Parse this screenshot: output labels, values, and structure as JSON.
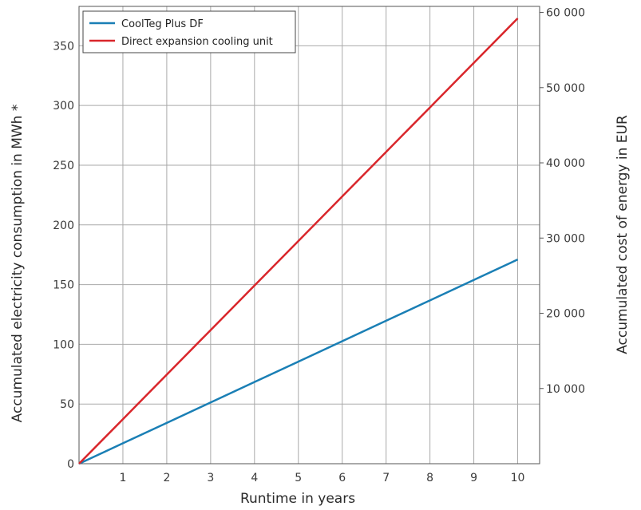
{
  "chart_data": {
    "type": "line",
    "x": [
      0,
      1,
      2,
      3,
      4,
      5,
      6,
      7,
      8,
      9,
      10
    ],
    "x_ticks": [
      "1",
      "2",
      "3",
      "4",
      "5",
      "6",
      "7",
      "8",
      "9",
      "10"
    ],
    "xlim": [
      0,
      10.5
    ],
    "xlabel": "Runtime in years",
    "ylabel": "Accumulated electricity consumption in MWh *",
    "ylim": [
      0,
      383
    ],
    "y_ticks": [
      "0",
      "50",
      "100",
      "150",
      "200",
      "250",
      "300",
      "350"
    ],
    "y2label": "Accumulated cost of energy in EUR",
    "y2lim": [
      0,
      60800
    ],
    "y2_ticks": [
      "10 000",
      "20 000",
      "30 000",
      "40 000",
      "50 000",
      "60 000"
    ],
    "grid": true,
    "legend_position": "top-left",
    "series": [
      {
        "name": "CoolTeg Plus DF",
        "color": "#1a7fb5",
        "values": [
          0,
          17.1,
          34.2,
          51.3,
          68.4,
          85.5,
          102.6,
          119.7,
          136.8,
          153.9,
          171
        ]
      },
      {
        "name": "Direct expansion cooling unit",
        "color": "#d9262b",
        "values": [
          0,
          37.3,
          74.6,
          111.9,
          149.2,
          186.5,
          223.8,
          261.1,
          298.4,
          335.7,
          373
        ]
      }
    ]
  }
}
